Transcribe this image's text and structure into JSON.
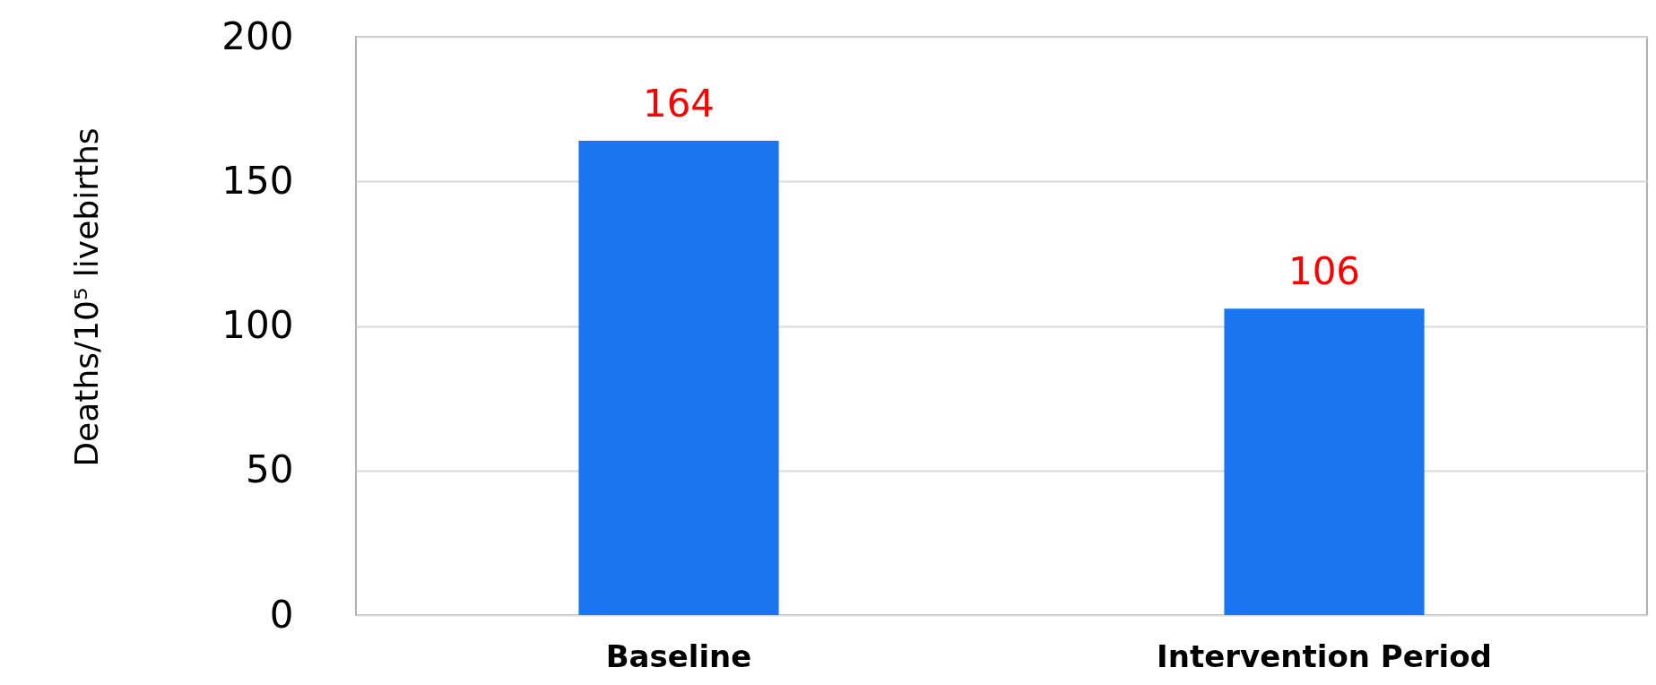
{
  "chart_data": {
    "type": "bar",
    "ylabel": "Deaths/10⁵ livebirths",
    "categories": [
      "Baseline",
      "Intervention Period"
    ],
    "values": [
      164,
      106
    ],
    "color": "#1a75f0",
    "ylim": [
      0,
      200
    ],
    "yticks": [
      0,
      50,
      100,
      150,
      200
    ],
    "grid": "y",
    "data_labels": true
  }
}
